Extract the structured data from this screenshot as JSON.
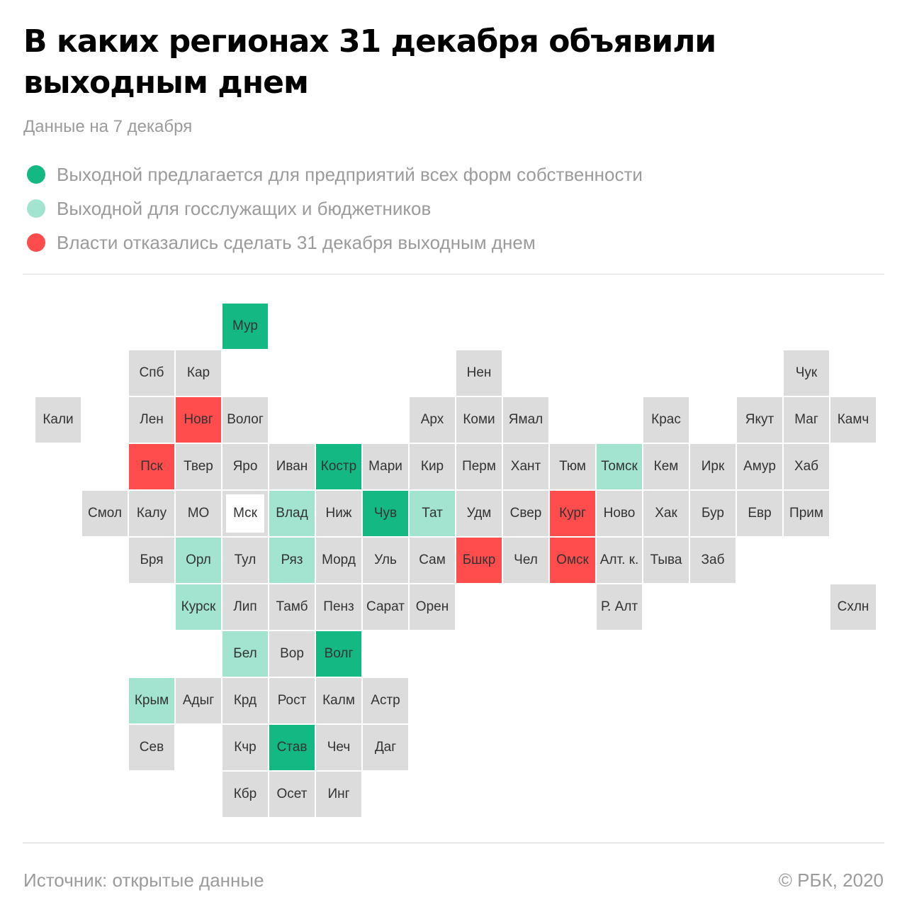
{
  "title": "В каких регионах 31 декабря объявили выходным днем",
  "subtitle": "Данные на 7 декабря",
  "legend": [
    {
      "label": "Выходной предлагается для предприятий всех форм собственности",
      "color": "#14b882"
    },
    {
      "label": "Выходной для госслужащих и бюджетников",
      "color": "#a2e4cf"
    },
    {
      "label": "Власти отказались сделать 31 декабря выходным днем",
      "color": "#ff4d4d"
    }
  ],
  "colors": {
    "none": "#dcdcdc",
    "all": "#14b882",
    "gov": "#a2e4cf",
    "refused": "#ff4d4d"
  },
  "regions": [
    {
      "label": "Мур",
      "status": "all",
      "row": 0,
      "col": 4
    },
    {
      "label": "Спб",
      "status": "none",
      "row": 1,
      "col": 2
    },
    {
      "label": "Кар",
      "status": "none",
      "row": 1,
      "col": 3
    },
    {
      "label": "Нен",
      "status": "none",
      "row": 1,
      "col": 9
    },
    {
      "label": "Чук",
      "status": "none",
      "row": 1,
      "col": 16
    },
    {
      "label": "Кали",
      "status": "none",
      "row": 2,
      "col": 0
    },
    {
      "label": "Лен",
      "status": "none",
      "row": 2,
      "col": 2
    },
    {
      "label": "Новг",
      "status": "refused",
      "row": 2,
      "col": 3
    },
    {
      "label": "Волог",
      "status": "none",
      "row": 2,
      "col": 4
    },
    {
      "label": "Арх",
      "status": "none",
      "row": 2,
      "col": 8
    },
    {
      "label": "Коми",
      "status": "none",
      "row": 2,
      "col": 9
    },
    {
      "label": "Ямал",
      "status": "none",
      "row": 2,
      "col": 10
    },
    {
      "label": "Крас",
      "status": "none",
      "row": 2,
      "col": 13
    },
    {
      "label": "Якут",
      "status": "none",
      "row": 2,
      "col": 15
    },
    {
      "label": "Маг",
      "status": "none",
      "row": 2,
      "col": 16
    },
    {
      "label": "Камч",
      "status": "none",
      "row": 2,
      "col": 17
    },
    {
      "label": "Пск",
      "status": "refused",
      "row": 3,
      "col": 2
    },
    {
      "label": "Твер",
      "status": "none",
      "row": 3,
      "col": 3
    },
    {
      "label": "Яро",
      "status": "none",
      "row": 3,
      "col": 4
    },
    {
      "label": "Иван",
      "status": "none",
      "row": 3,
      "col": 5
    },
    {
      "label": "Костр",
      "status": "all",
      "row": 3,
      "col": 6
    },
    {
      "label": "Мари",
      "status": "none",
      "row": 3,
      "col": 7
    },
    {
      "label": "Кир",
      "status": "none",
      "row": 3,
      "col": 8
    },
    {
      "label": "Перм",
      "status": "none",
      "row": 3,
      "col": 9
    },
    {
      "label": "Хант",
      "status": "none",
      "row": 3,
      "col": 10
    },
    {
      "label": "Тюм",
      "status": "none",
      "row": 3,
      "col": 11
    },
    {
      "label": "Томск",
      "status": "gov",
      "row": 3,
      "col": 12
    },
    {
      "label": "Кем",
      "status": "none",
      "row": 3,
      "col": 13
    },
    {
      "label": "Ирк",
      "status": "none",
      "row": 3,
      "col": 14
    },
    {
      "label": "Амур",
      "status": "none",
      "row": 3,
      "col": 15
    },
    {
      "label": "Хаб",
      "status": "none",
      "row": 3,
      "col": 16
    },
    {
      "label": "Смол",
      "status": "none",
      "row": 4,
      "col": 1
    },
    {
      "label": "Калу",
      "status": "none",
      "row": 4,
      "col": 2
    },
    {
      "label": "МО",
      "status": "none",
      "row": 4,
      "col": 3
    },
    {
      "label": "Мск",
      "status": "moscow",
      "row": 4,
      "col": 4
    },
    {
      "label": "Влад",
      "status": "gov",
      "row": 4,
      "col": 5
    },
    {
      "label": "Ниж",
      "status": "none",
      "row": 4,
      "col": 6
    },
    {
      "label": "Чув",
      "status": "all",
      "row": 4,
      "col": 7
    },
    {
      "label": "Тат",
      "status": "gov",
      "row": 4,
      "col": 8
    },
    {
      "label": "Удм",
      "status": "none",
      "row": 4,
      "col": 9
    },
    {
      "label": "Свер",
      "status": "none",
      "row": 4,
      "col": 10
    },
    {
      "label": "Кург",
      "status": "refused",
      "row": 4,
      "col": 11
    },
    {
      "label": "Ново",
      "status": "none",
      "row": 4,
      "col": 12
    },
    {
      "label": "Хак",
      "status": "none",
      "row": 4,
      "col": 13
    },
    {
      "label": "Бур",
      "status": "none",
      "row": 4,
      "col": 14
    },
    {
      "label": "Евр",
      "status": "none",
      "row": 4,
      "col": 15
    },
    {
      "label": "Прим",
      "status": "none",
      "row": 4,
      "col": 16
    },
    {
      "label": "Бря",
      "status": "none",
      "row": 5,
      "col": 2
    },
    {
      "label": "Орл",
      "status": "gov",
      "row": 5,
      "col": 3
    },
    {
      "label": "Тул",
      "status": "none",
      "row": 5,
      "col": 4
    },
    {
      "label": "Ряз",
      "status": "gov",
      "row": 5,
      "col": 5
    },
    {
      "label": "Морд",
      "status": "none",
      "row": 5,
      "col": 6
    },
    {
      "label": "Уль",
      "status": "none",
      "row": 5,
      "col": 7
    },
    {
      "label": "Сам",
      "status": "none",
      "row": 5,
      "col": 8
    },
    {
      "label": "Бшкр",
      "status": "refused",
      "row": 5,
      "col": 9
    },
    {
      "label": "Чел",
      "status": "none",
      "row": 5,
      "col": 10
    },
    {
      "label": "Омск",
      "status": "refused",
      "row": 5,
      "col": 11
    },
    {
      "label": "Алт. к.",
      "status": "none",
      "row": 5,
      "col": 12
    },
    {
      "label": "Тыва",
      "status": "none",
      "row": 5,
      "col": 13
    },
    {
      "label": "Заб",
      "status": "none",
      "row": 5,
      "col": 14
    },
    {
      "label": "Курск",
      "status": "gov",
      "row": 6,
      "col": 3
    },
    {
      "label": "Лип",
      "status": "none",
      "row": 6,
      "col": 4
    },
    {
      "label": "Тамб",
      "status": "none",
      "row": 6,
      "col": 5
    },
    {
      "label": "Пенз",
      "status": "none",
      "row": 6,
      "col": 6
    },
    {
      "label": "Сарат",
      "status": "none",
      "row": 6,
      "col": 7
    },
    {
      "label": "Орен",
      "status": "none",
      "row": 6,
      "col": 8
    },
    {
      "label": "Р. Алт",
      "status": "none",
      "row": 6,
      "col": 12
    },
    {
      "label": "Схлн",
      "status": "none",
      "row": 6,
      "col": 17
    },
    {
      "label": "Бел",
      "status": "gov",
      "row": 7,
      "col": 4
    },
    {
      "label": "Вор",
      "status": "none",
      "row": 7,
      "col": 5
    },
    {
      "label": "Волг",
      "status": "all",
      "row": 7,
      "col": 6
    },
    {
      "label": "Крым",
      "status": "gov",
      "row": 8,
      "col": 2
    },
    {
      "label": "Адыг",
      "status": "none",
      "row": 8,
      "col": 3
    },
    {
      "label": "Крд",
      "status": "none",
      "row": 8,
      "col": 4
    },
    {
      "label": "Рост",
      "status": "none",
      "row": 8,
      "col": 5
    },
    {
      "label": "Калм",
      "status": "none",
      "row": 8,
      "col": 6
    },
    {
      "label": "Астр",
      "status": "none",
      "row": 8,
      "col": 7
    },
    {
      "label": "Сев",
      "status": "none",
      "row": 9,
      "col": 2
    },
    {
      "label": "Кчр",
      "status": "none",
      "row": 9,
      "col": 4
    },
    {
      "label": "Став",
      "status": "all",
      "row": 9,
      "col": 5
    },
    {
      "label": "Чеч",
      "status": "none",
      "row": 9,
      "col": 6
    },
    {
      "label": "Даг",
      "status": "none",
      "row": 9,
      "col": 7
    },
    {
      "label": "Кбр",
      "status": "none",
      "row": 10,
      "col": 4
    },
    {
      "label": "Осет",
      "status": "none",
      "row": 10,
      "col": 5
    },
    {
      "label": "Инг",
      "status": "none",
      "row": 10,
      "col": 6
    }
  ],
  "footer": {
    "source": "Источник:  открытые данные",
    "credit": "©  РБК, 2020"
  }
}
